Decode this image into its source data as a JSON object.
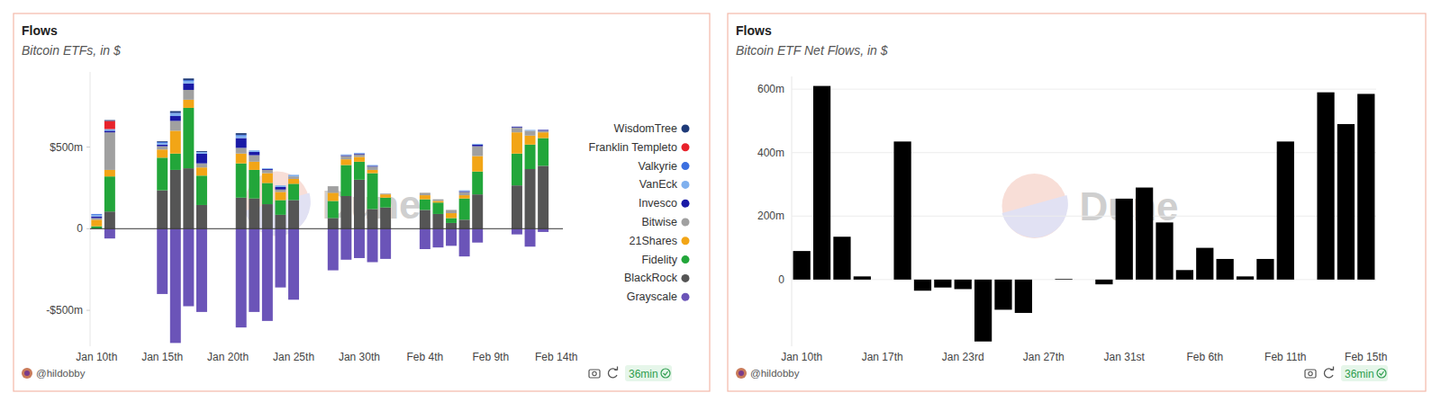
{
  "chart_data": [
    {
      "type": "bar",
      "title": "Flows",
      "subtitle": "Bitcoin ETFs, in $",
      "stacked": true,
      "legend": "right",
      "grid": false,
      "categories": [
        "Jan 10th",
        null,
        null,
        null,
        null,
        "Jan 15th",
        null,
        null,
        null,
        null,
        "Jan 20th",
        null,
        null,
        null,
        null,
        "Jan 25th",
        null,
        null,
        null,
        null,
        "Jan 30th",
        null,
        null,
        null,
        null,
        "Feb 4th",
        null,
        null,
        null,
        null,
        "Feb 9th",
        null,
        null,
        null,
        null,
        "Feb 14th"
      ],
      "series": [
        {
          "name": "WisdomTree",
          "color": "#1e3a78",
          "values": [
            0,
            5,
            null,
            null,
            null,
            5,
            10,
            10,
            5,
            null,
            null,
            10,
            0,
            0,
            0,
            0,
            null,
            null,
            0,
            0,
            0,
            0,
            0,
            null,
            null,
            0,
            0,
            0,
            0,
            0,
            null,
            null,
            0,
            0,
            0,
            null
          ]
        },
        {
          "name": "Franklin Templeto",
          "color": "#e8222b",
          "values": [
            0,
            50,
            null,
            null,
            null,
            0,
            0,
            0,
            0,
            null,
            null,
            0,
            0,
            0,
            0,
            0,
            null,
            null,
            0,
            0,
            0,
            0,
            0,
            null,
            null,
            0,
            0,
            0,
            0,
            0,
            null,
            null,
            0,
            0,
            0,
            null
          ]
        },
        {
          "name": "Valkyrie",
          "color": "#3b6fe0",
          "values": [
            5,
            0,
            null,
            null,
            null,
            5,
            5,
            5,
            0,
            null,
            null,
            5,
            0,
            0,
            0,
            0,
            null,
            null,
            0,
            0,
            0,
            0,
            0,
            null,
            null,
            0,
            0,
            0,
            0,
            0,
            null,
            null,
            0,
            0,
            0,
            null
          ]
        },
        {
          "name": "VanEck",
          "color": "#7fb0ee",
          "values": [
            10,
            10,
            null,
            null,
            null,
            10,
            15,
            15,
            10,
            null,
            null,
            15,
            10,
            5,
            10,
            10,
            null,
            null,
            0,
            5,
            5,
            5,
            0,
            null,
            null,
            0,
            0,
            0,
            5,
            5,
            null,
            null,
            0,
            5,
            0,
            null
          ]
        },
        {
          "name": "Invesco",
          "color": "#1a1aa6",
          "values": [
            10,
            10,
            null,
            null,
            null,
            10,
            30,
            40,
            60,
            null,
            null,
            60,
            20,
            5,
            15,
            0,
            null,
            null,
            0,
            5,
            5,
            5,
            0,
            null,
            null,
            0,
            0,
            0,
            5,
            10,
            null,
            null,
            5,
            0,
            5,
            null
          ]
        },
        {
          "name": "Bitwise",
          "color": "#a0a0a0",
          "values": [
            10,
            230,
            null,
            null,
            null,
            20,
            60,
            60,
            25,
            null,
            null,
            35,
            40,
            20,
            15,
            15,
            null,
            null,
            40,
            20,
            15,
            20,
            5,
            null,
            null,
            15,
            10,
            20,
            20,
            60,
            null,
            null,
            30,
            30,
            10,
            null
          ]
        },
        {
          "name": "21Shares",
          "color": "#f2a516",
          "values": [
            40,
            40,
            null,
            null,
            null,
            50,
            140,
            50,
            50,
            null,
            null,
            60,
            50,
            60,
            50,
            30,
            null,
            null,
            50,
            35,
            30,
            20,
            20,
            null,
            null,
            25,
            10,
            30,
            20,
            95,
            null,
            null,
            130,
            55,
            35,
            null
          ]
        },
        {
          "name": "Fidelity",
          "color": "#22a63a",
          "values": [
            15,
            215,
            null,
            null,
            null,
            200,
            100,
            370,
            180,
            null,
            null,
            210,
            175,
            130,
            90,
            100,
            null,
            null,
            105,
            190,
            110,
            220,
            60,
            null,
            null,
            65,
            70,
            30,
            130,
            140,
            null,
            null,
            195,
            150,
            170,
            null
          ]
        },
        {
          "name": "BlackRock",
          "color": "#555555",
          "values": [
            0,
            105,
            null,
            null,
            null,
            235,
            360,
            370,
            145,
            null,
            null,
            190,
            185,
            150,
            85,
            175,
            null,
            null,
            65,
            200,
            300,
            120,
            130,
            null,
            null,
            115,
            90,
            35,
            55,
            210,
            null,
            null,
            265,
            365,
            385,
            null
          ]
        },
        {
          "name": "Grayscale",
          "color": "#6b54b8",
          "values": [
            0,
            -60,
            null,
            null,
            null,
            -400,
            -700,
            -475,
            -510,
            null,
            null,
            -605,
            -510,
            -565,
            -360,
            -435,
            null,
            null,
            -255,
            -190,
            -180,
            -205,
            -185,
            null,
            null,
            -125,
            -115,
            -105,
            -170,
            -85,
            null,
            null,
            -35,
            -110,
            -20,
            null
          ]
        }
      ],
      "ylim": [
        -720,
        960
      ],
      "yticks": [
        {
          "value": -500,
          "label": "-$500m"
        },
        0,
        {
          "value": 500,
          "label": "$500m"
        }
      ],
      "annotations": [
        "Dune",
        "@hildobby",
        "36min"
      ]
    },
    {
      "type": "bar",
      "title": "Flows",
      "subtitle": "Bitcoin ETF Net Flows, in $",
      "color": "#000000",
      "grid": true,
      "categories": [
        "Jan 10th",
        null,
        null,
        null,
        "Jan 17th",
        null,
        null,
        null,
        "Jan 23rd",
        null,
        null,
        null,
        "Jan 27th",
        null,
        null,
        null,
        "Jan 31st",
        null,
        null,
        null,
        "Feb 6th",
        null,
        null,
        null,
        "Feb 11th",
        null,
        null,
        null,
        "Feb 15th"
      ],
      "values": [
        90,
        610,
        135,
        10,
        0,
        435,
        -35,
        -25,
        -30,
        -195,
        -95,
        -105,
        0,
        2,
        0,
        -15,
        255,
        290,
        180,
        30,
        100,
        65,
        10,
        65,
        435,
        0,
        590,
        490,
        585
      ],
      "ylim": [
        -210,
        640
      ],
      "yticks": [
        0,
        {
          "value": 200,
          "label": "200m"
        },
        {
          "value": 400,
          "label": "400m"
        },
        {
          "value": 600,
          "label": "600m"
        }
      ],
      "annotations": [
        "Dune",
        "@hildobby",
        "36min"
      ]
    }
  ]
}
